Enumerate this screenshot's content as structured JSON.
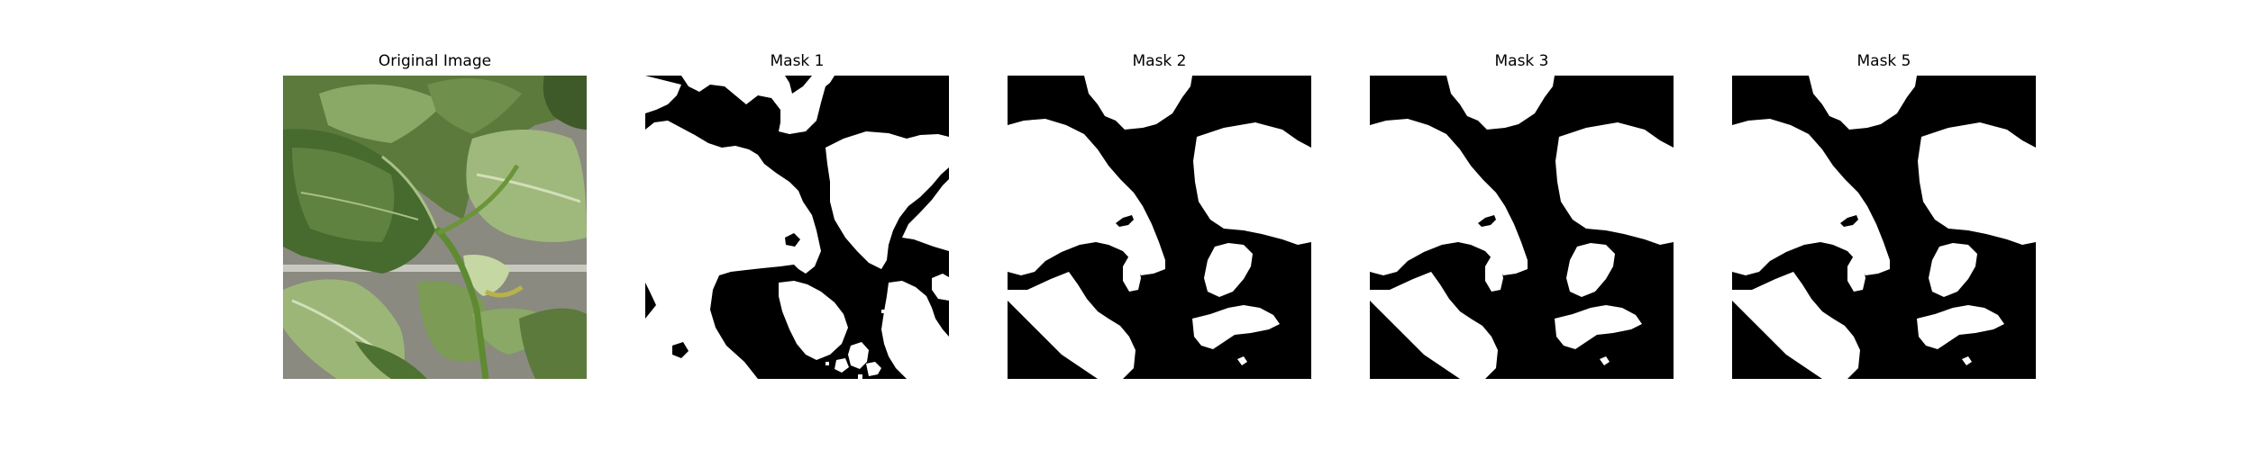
{
  "figure": {
    "panels": [
      {
        "title": "Original Image",
        "kind": "photo",
        "content": "green pepper plant leaves with stems"
      },
      {
        "title": "Mask 1",
        "kind": "binary-mask",
        "variant": "noisy"
      },
      {
        "title": "Mask 2",
        "kind": "binary-mask",
        "variant": "smooth"
      },
      {
        "title": "Mask 3",
        "kind": "binary-mask",
        "variant": "smooth"
      },
      {
        "title": "Mask 5",
        "kind": "binary-mask",
        "variant": "smooth"
      }
    ]
  },
  "colors": {
    "mask_foreground": "#ffffff",
    "mask_background": "#000000",
    "leaf_dark": "#3f5e2a",
    "leaf_mid": "#6f8f4c",
    "leaf_light": "#a6bd83",
    "background_gray": "#8a8a80"
  }
}
